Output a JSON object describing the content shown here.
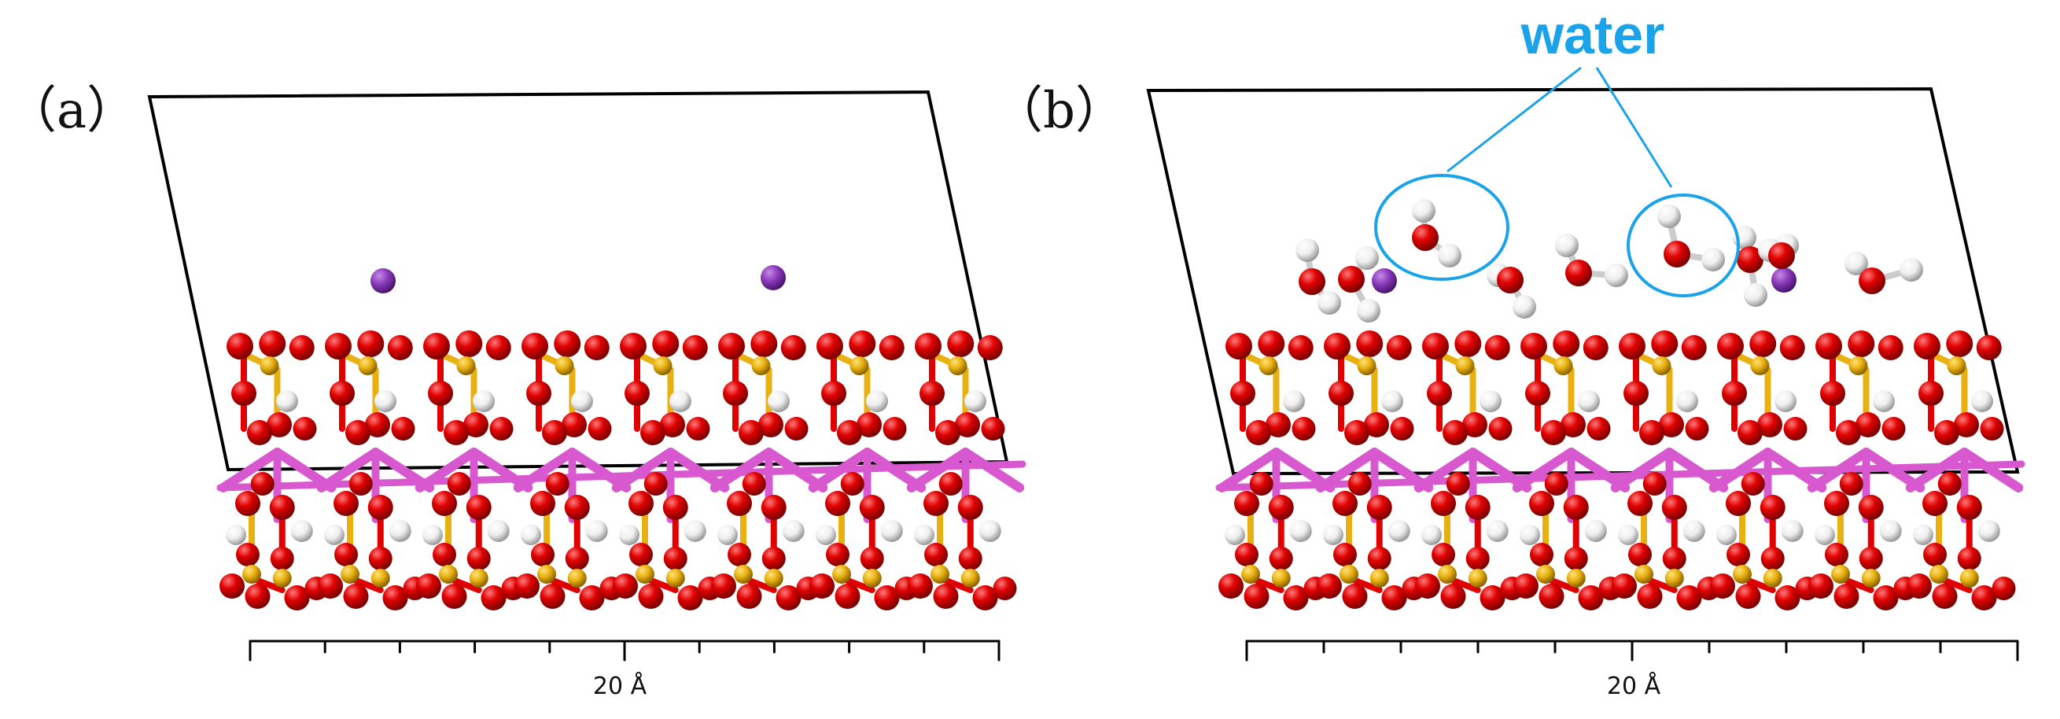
{
  "panels": [
    {
      "id": "a",
      "label": "（a）",
      "scale_label": "20 Å"
    },
    {
      "id": "b",
      "label": "（b）",
      "scale_label": "20 Å"
    }
  ],
  "annotation": {
    "text": "water"
  },
  "colors": {
    "oxygen": "#e00000",
    "silicon": "#e8b010",
    "hydrogen": "#f2f2f2",
    "potassium": "#8a3ab9",
    "metal_bond": "#d858d0",
    "cell": "#000000",
    "annotation": "#1aa3e8"
  }
}
